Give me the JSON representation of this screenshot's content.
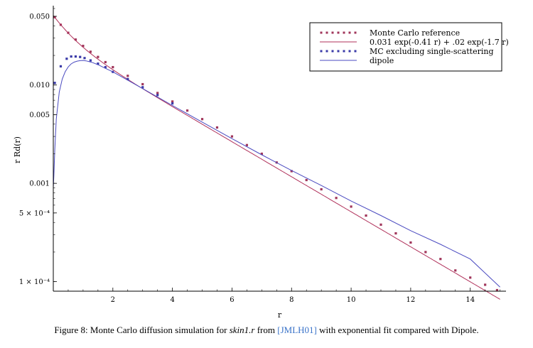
{
  "chart_data": {
    "type": "scatter",
    "title": "",
    "xlabel": "r",
    "ylabel": "r Rd(r)",
    "y_scale": "log",
    "xlim": [
      0,
      15.2
    ],
    "ylim": [
      8e-05,
      0.06
    ],
    "x_ticks": [
      2,
      4,
      6,
      8,
      10,
      12,
      14
    ],
    "y_ticks": [
      {
        "value": 0.05,
        "label": "0.050"
      },
      {
        "value": 0.01,
        "label": "0.010"
      },
      {
        "value": 0.005,
        "label": "0.005"
      },
      {
        "value": 0.001,
        "label": "0.001"
      },
      {
        "value": 0.0005,
        "label": "5 × 10⁻⁴"
      },
      {
        "value": 0.0001,
        "label": "1 × 10⁻⁴"
      }
    ],
    "legend_position": "top-right",
    "series": [
      {
        "name": "Monte Carlo reference",
        "style": "dots",
        "color": "#a0355a",
        "x": [
          0.05,
          0.25,
          0.5,
          0.75,
          1.0,
          1.25,
          1.5,
          1.75,
          2.0,
          2.5,
          3.0,
          3.5,
          4.0,
          4.5,
          5.0,
          5.5,
          6.0,
          6.5,
          7.0,
          7.5,
          8.0,
          8.5,
          9.0,
          9.5,
          10.0,
          10.5,
          11.0,
          11.5,
          12.0,
          12.5,
          13.0,
          13.5,
          14.0,
          14.5,
          14.9
        ],
        "y": [
          0.049,
          0.041,
          0.034,
          0.029,
          0.025,
          0.0218,
          0.0193,
          0.0171,
          0.0152,
          0.0124,
          0.0102,
          0.0083,
          0.0068,
          0.0055,
          0.0045,
          0.0037,
          0.003,
          0.00245,
          0.002,
          0.00163,
          0.00133,
          0.00108,
          0.00087,
          0.00071,
          0.00058,
          0.00047,
          0.00038,
          0.00031,
          0.00025,
          0.0002,
          0.00017,
          0.00013,
          0.00011,
          9.3e-05,
          8.2e-05
        ]
      },
      {
        "name": "0.031 exp(-0.41 r) + .02 exp(-1.7 r)",
        "style": "line",
        "color": "#b0305a",
        "function": {
          "a1": 0.031,
          "k1": 0.41,
          "a2": 0.02,
          "k2": 1.7
        },
        "x_range": [
          0,
          15
        ]
      },
      {
        "name": "MC excluding single-scattering",
        "style": "dots",
        "color": "#3a3aa8",
        "x": [
          0.05,
          0.25,
          0.45,
          0.6,
          0.75,
          0.9,
          1.05,
          1.25,
          1.5,
          1.75,
          2.0,
          2.5,
          3.0,
          3.5,
          4.0
        ],
        "y": [
          0.0105,
          0.0155,
          0.0185,
          0.0195,
          0.0195,
          0.0193,
          0.0188,
          0.0178,
          0.0165,
          0.0152,
          0.0136,
          0.0115,
          0.0095,
          0.0079,
          0.0065
        ]
      },
      {
        "name": "dipole",
        "style": "line",
        "color": "#4a4ac0",
        "x": [
          0.0,
          0.02,
          0.05,
          0.1,
          0.2,
          0.3,
          0.4,
          0.5,
          0.6,
          0.7,
          0.8,
          0.9,
          1.0,
          1.1,
          1.3,
          1.5,
          1.75,
          2.0,
          2.5,
          3.0,
          4.0,
          5.0,
          6.0,
          7.0,
          8.0,
          9.0,
          10.0,
          11.0,
          12.0,
          13.0,
          14.0,
          15.0
        ],
        "y": [
          0.0009,
          0.0012,
          0.0022,
          0.0045,
          0.0085,
          0.0115,
          0.0137,
          0.0153,
          0.0164,
          0.0171,
          0.0175,
          0.0177,
          0.0178,
          0.0176,
          0.017,
          0.0161,
          0.0148,
          0.0136,
          0.0112,
          0.0092,
          0.0062,
          0.0042,
          0.00285,
          0.00195,
          0.00135,
          0.00095,
          0.00066,
          0.00047,
          0.00033,
          0.00024,
          0.00017,
          8.8e-05
        ]
      }
    ]
  },
  "caption": {
    "prefix": "Figure 8: Monte Carlo diffusion simulation for ",
    "emph": "skin1.r",
    "mid": " from ",
    "ref": "[JMLH01]",
    "suffix": " with exponential fit compared with Dipole."
  }
}
